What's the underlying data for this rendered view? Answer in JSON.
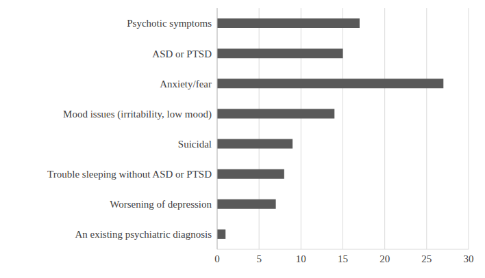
{
  "chart_data": {
    "type": "bar",
    "orientation": "horizontal",
    "categories": [
      "Psychotic symptoms",
      "ASD or PTSD",
      "Anxiety/fear",
      "Mood issues (irritability, low mood)",
      "Suicidal",
      "Trouble sleeping without ASD or PTSD",
      "Worsening of depression",
      "An existing psychiatric diagnosis"
    ],
    "values": [
      17,
      15,
      27,
      14,
      9,
      8,
      7,
      1
    ],
    "color": "#595959",
    "xlim": [
      0,
      30
    ],
    "xticks": [
      0,
      5,
      10,
      15,
      20,
      25,
      30
    ],
    "grid": true
  }
}
